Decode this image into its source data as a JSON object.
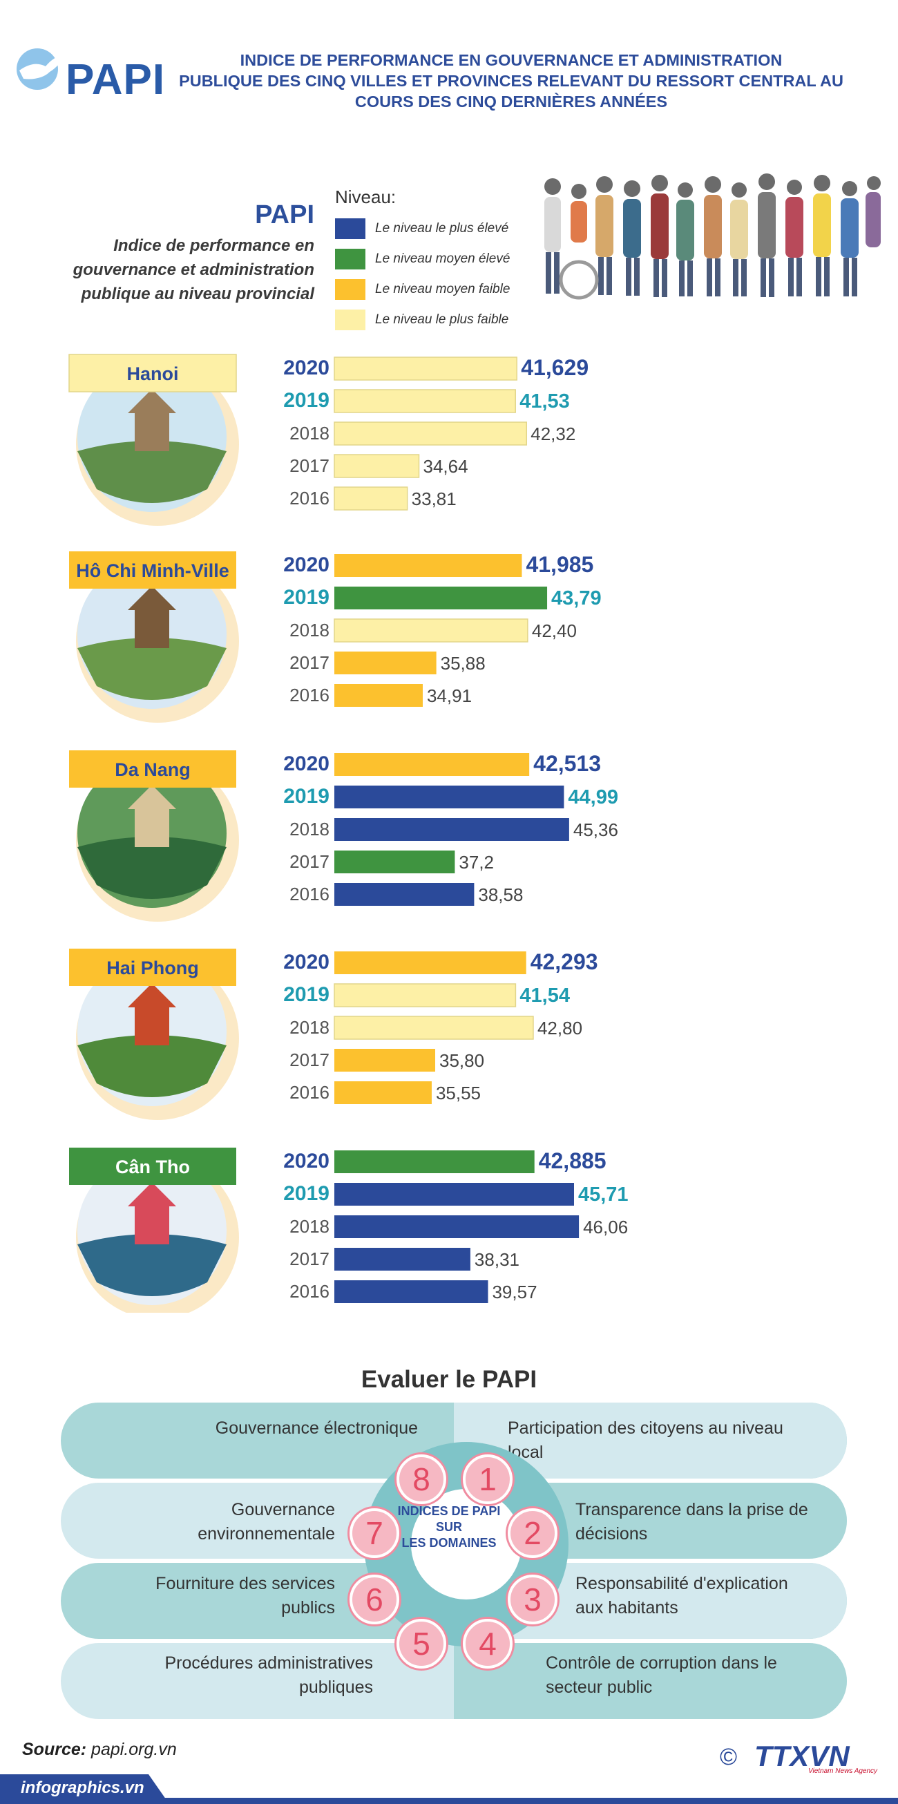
{
  "header": {
    "logo_text": "PAPI",
    "title_lines": [
      "INDICE DE PERFORMANCE EN GOUVERNANCE ET ADMINISTRATION",
      "PUBLIQUE DES CINQ  VILLES ET PROVINCES RELEVANT DU RESSORT CENTRAL AU",
      "COURS DES CINQ DERNIÈRES ANNÉES"
    ]
  },
  "intro": {
    "heading": "PAPI",
    "description_lines": [
      "Indice de performance en",
      "gouvernance et administration",
      "publique au niveau provincial"
    ]
  },
  "legend": {
    "title": "Niveau:",
    "items": [
      {
        "label": "Le niveau le  plus élevé",
        "color": "#2b4a9a",
        "key": "high"
      },
      {
        "label": "Le niveau moyen élevé",
        "color": "#3f9440",
        "key": "midhigh"
      },
      {
        "label": "Le niveau moyen faible",
        "color": "#fcc12e",
        "key": "midlow"
      },
      {
        "label": "Le niveau le plus faible",
        "color": "#fdf0a6",
        "key": "low"
      }
    ]
  },
  "chart_data": {
    "type": "bar",
    "orientation": "horizontal",
    "title": "PAPI",
    "xlabel": "",
    "ylabel": "",
    "xlim": [
      0,
      48
    ],
    "level_colors": {
      "high": "#2b4a9a",
      "midhigh": "#3f9440",
      "midlow": "#fcc12e",
      "low": "#fdf0a6"
    },
    "cities": [
      {
        "name": "Hanoi",
        "label_level": "low",
        "rows": [
          {
            "year": "2020",
            "value": 41.629,
            "label": "41,629",
            "level": "low"
          },
          {
            "year": "2019",
            "value": 41.53,
            "label": "41,53",
            "level": "low"
          },
          {
            "year": "2018",
            "value": 42.32,
            "label": "42,32",
            "level": "low"
          },
          {
            "year": "2017",
            "value": 34.64,
            "label": "34,64",
            "level": "low"
          },
          {
            "year": "2016",
            "value": 33.81,
            "label": "33,81",
            "level": "low"
          }
        ]
      },
      {
        "name": "Hô Chi Minh-Ville",
        "label_level": "midlow",
        "rows": [
          {
            "year": "2020",
            "value": 41.985,
            "label": "41,985",
            "level": "midlow"
          },
          {
            "year": "2019",
            "value": 43.79,
            "label": "43,79",
            "level": "midhigh"
          },
          {
            "year": "2018",
            "value": 42.4,
            "label": "42,40",
            "level": "low"
          },
          {
            "year": "2017",
            "value": 35.88,
            "label": "35,88",
            "level": "midlow"
          },
          {
            "year": "2016",
            "value": 34.91,
            "label": "34,91",
            "level": "midlow"
          }
        ]
      },
      {
        "name": "Da Nang",
        "label_level": "midlow",
        "rows": [
          {
            "year": "2020",
            "value": 42.513,
            "label": "42,513",
            "level": "midlow"
          },
          {
            "year": "2019",
            "value": 44.99,
            "label": "44,99",
            "level": "high"
          },
          {
            "year": "2018",
            "value": 45.36,
            "label": "45,36",
            "level": "high"
          },
          {
            "year": "2017",
            "value": 37.2,
            "label": "37,2",
            "level": "midhigh"
          },
          {
            "year": "2016",
            "value": 38.58,
            "label": "38,58",
            "level": "high"
          }
        ]
      },
      {
        "name": "Hai Phong",
        "label_level": "midlow",
        "rows": [
          {
            "year": "2020",
            "value": 42.293,
            "label": "42,293",
            "level": "midlow"
          },
          {
            "year": "2019",
            "value": 41.54,
            "label": "41,54",
            "level": "low"
          },
          {
            "year": "2018",
            "value": 42.8,
            "label": "42,80",
            "level": "low"
          },
          {
            "year": "2017",
            "value": 35.8,
            "label": "35,80",
            "level": "midlow"
          },
          {
            "year": "2016",
            "value": 35.55,
            "label": "35,55",
            "level": "midlow"
          }
        ]
      },
      {
        "name": "Cân Tho",
        "label_level": "midhigh",
        "rows": [
          {
            "year": "2020",
            "value": 42.885,
            "label": "42,885",
            "level": "midhigh"
          },
          {
            "year": "2019",
            "value": 45.71,
            "label": "45,71",
            "level": "high"
          },
          {
            "year": "2018",
            "value": 46.06,
            "label": "46,06",
            "level": "high"
          },
          {
            "year": "2017",
            "value": 38.31,
            "label": "38,31",
            "level": "high"
          },
          {
            "year": "2016",
            "value": 39.57,
            "label": "39,57",
            "level": "high"
          }
        ]
      }
    ]
  },
  "evaluate": {
    "title": "Evaluer le PAPI",
    "center_lines": [
      "INDICES DE PAPI",
      "SUR",
      "LES DOMAINES"
    ],
    "domains": [
      {
        "num": "1",
        "lines": [
          "Participation des citoyens au niveau",
          "local"
        ]
      },
      {
        "num": "2",
        "lines": [
          "Transparence dans la prise de",
          "décisions"
        ]
      },
      {
        "num": "3",
        "lines": [
          "Responsabilité d'explication",
          "aux habitants"
        ]
      },
      {
        "num": "4",
        "lines": [
          "Contrôle de corruption dans le",
          "secteur public"
        ]
      },
      {
        "num": "5",
        "lines": [
          "Procédures administratives",
          "publiques"
        ]
      },
      {
        "num": "6",
        "lines": [
          "Fourniture des services",
          "publics"
        ]
      },
      {
        "num": "7",
        "lines": [
          "Gouvernance",
          "environnementale"
        ]
      },
      {
        "num": "8",
        "lines": [
          "Gouvernance électronique"
        ]
      }
    ]
  },
  "footer": {
    "source_label": "Source:",
    "source_value": "papi.org.vn",
    "site": "infographics.vn",
    "copyright": "©",
    "agency": "TTXVN",
    "agency_sub": "Vietnam News Agency"
  }
}
